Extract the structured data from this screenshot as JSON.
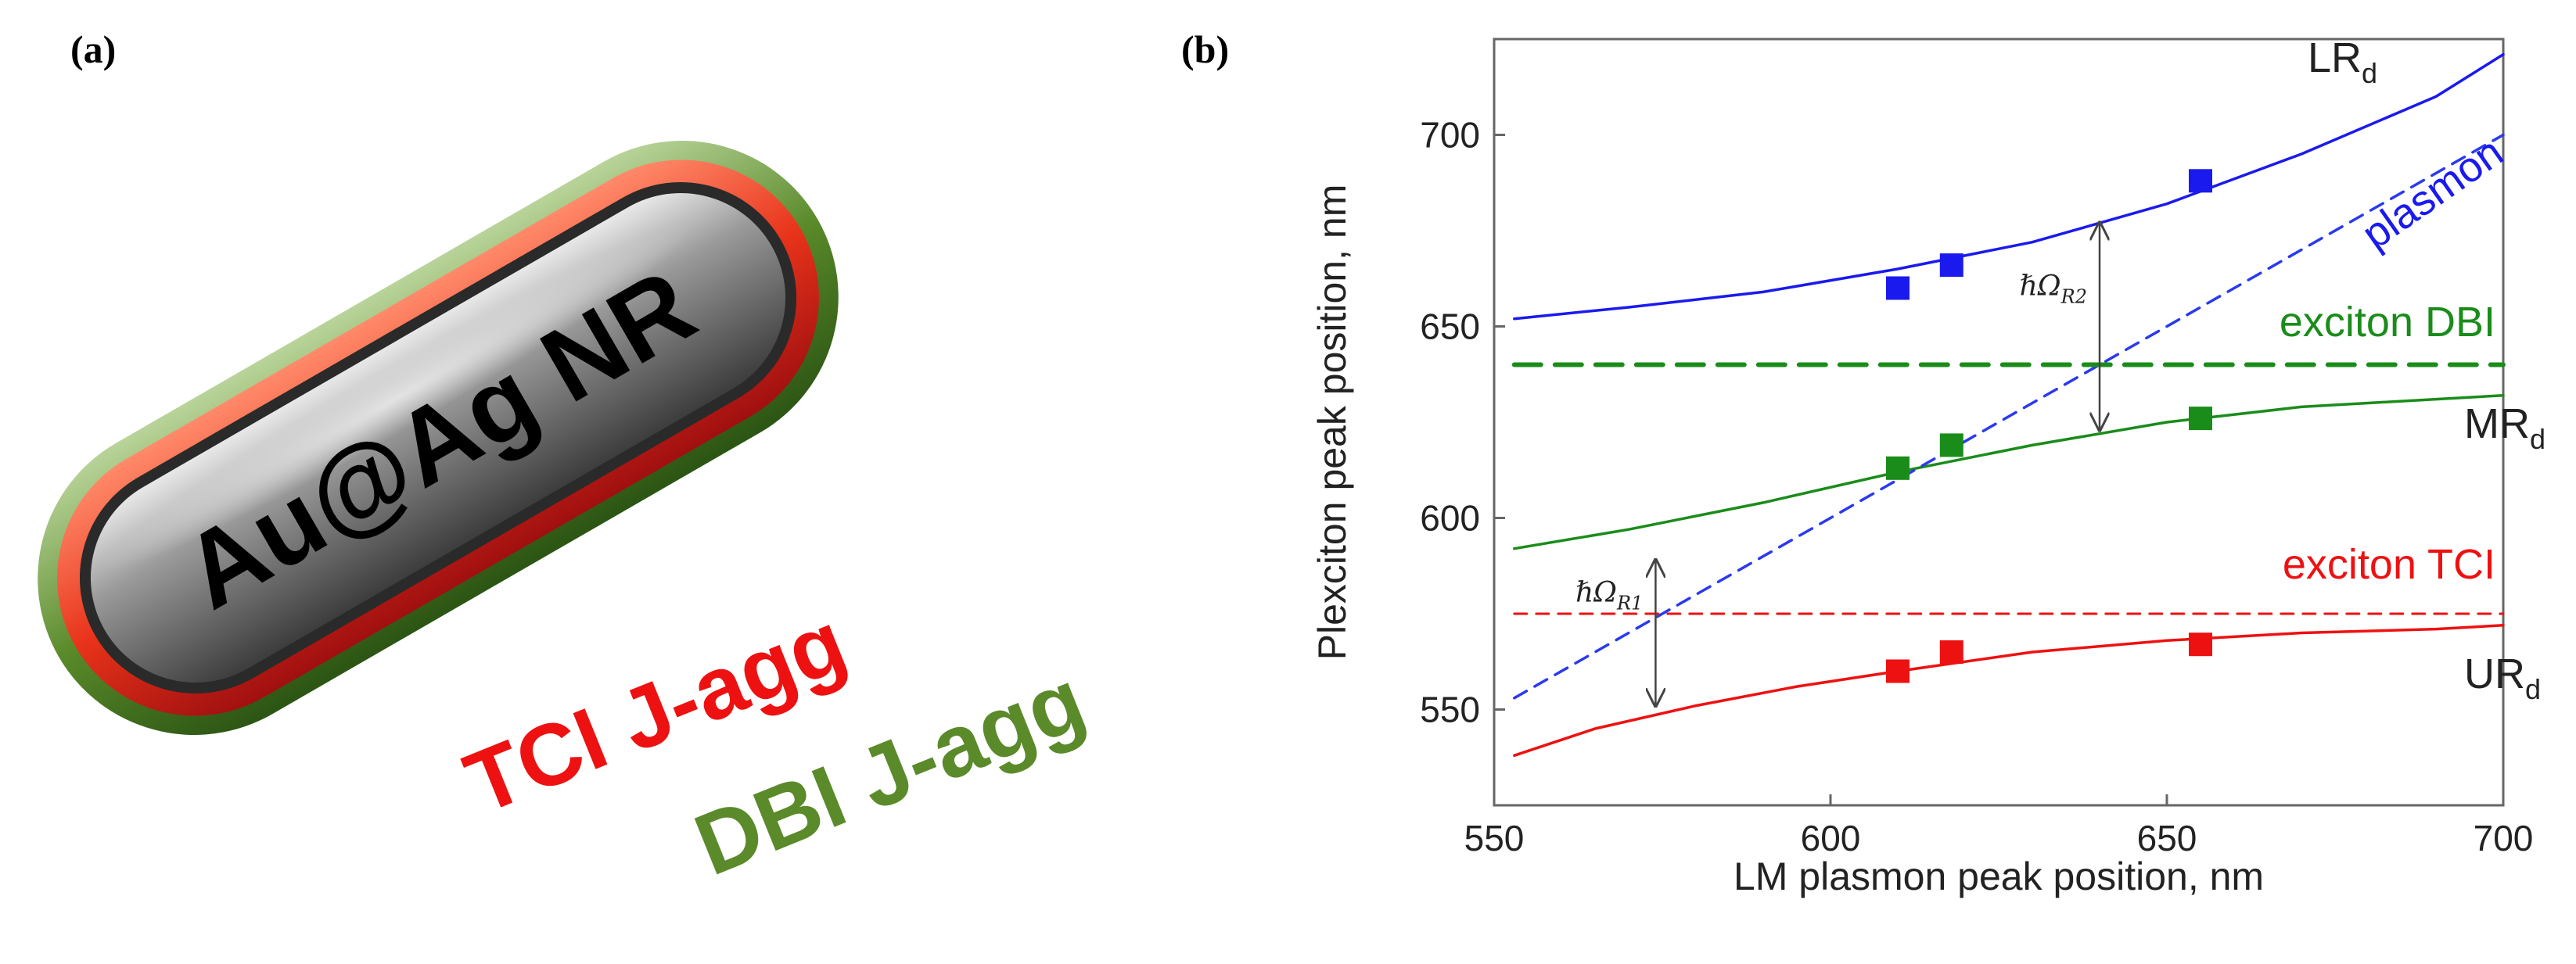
{
  "panel_a": {
    "label": "(a)",
    "rod_label": "Au@Ag NR",
    "shell_1_label": "TCI J-agg",
    "shell_2_label": "DBI J-agg",
    "colors": {
      "shell_1": "#ee1111",
      "shell_2": "#5a8a2a",
      "rod_core": "#8a8a8a"
    }
  },
  "panel_b": {
    "label": "(b)"
  },
  "chart_data": {
    "type": "line",
    "xlabel": "LM plasmon peak position, nm",
    "ylabel": "Plexciton peak position, nm",
    "xlim": [
      550,
      700
    ],
    "ylim": [
      525,
      725
    ],
    "xticks": [
      550,
      600,
      650,
      700
    ],
    "yticks": [
      550,
      600,
      650,
      700
    ],
    "series": [
      {
        "name": "LRd",
        "label_main": "LR",
        "label_sub": "d",
        "color": "#1a1aee",
        "style": "solid",
        "x": [
          553,
          570,
          590,
          610,
          630,
          650,
          670,
          690,
          700
        ],
        "y": [
          652,
          655,
          659,
          665,
          672,
          682,
          695,
          710,
          721
        ]
      },
      {
        "name": "MRd",
        "label_main": "MR",
        "label_sub": "d",
        "color": "#1a8c1a",
        "style": "solid",
        "x": [
          553,
          570,
          590,
          610,
          630,
          650,
          670,
          690,
          700
        ],
        "y": [
          592,
          597,
          604,
          612,
          619,
          625,
          629,
          631,
          632
        ]
      },
      {
        "name": "URd",
        "label_main": "UR",
        "label_sub": "d",
        "color": "#ee1111",
        "style": "solid",
        "x": [
          553,
          565,
          580,
          595,
          610,
          630,
          650,
          670,
          690,
          700
        ],
        "y": [
          538,
          545,
          551,
          556,
          560,
          565,
          568,
          570,
          571,
          572
        ]
      },
      {
        "name": "plasmon",
        "color": "#2a3aee",
        "style": "dashed",
        "x": [
          553,
          700
        ],
        "y": [
          553,
          700
        ]
      },
      {
        "name": "exciton DBI",
        "color": "#1a8c1a",
        "style": "dashed-thick",
        "x": [
          553,
          700
        ],
        "y": [
          640,
          640
        ]
      },
      {
        "name": "exciton TCI",
        "color": "#ee1111",
        "style": "dashed-thin",
        "x": [
          553,
          700
        ],
        "y": [
          575,
          575
        ]
      }
    ],
    "points": [
      {
        "series": "LRd",
        "color": "#1a1aee",
        "x": [
          610,
          618,
          655
        ],
        "y": [
          660,
          666,
          688
        ]
      },
      {
        "series": "MRd",
        "color": "#1a8c1a",
        "x": [
          610,
          618,
          655
        ],
        "y": [
          613,
          619,
          626
        ]
      },
      {
        "series": "URd",
        "color": "#ee1111",
        "x": [
          610,
          618,
          655
        ],
        "y": [
          560,
          565,
          567
        ]
      }
    ],
    "annotations": {
      "plasmon": "plasmon",
      "exciton_dbi": "exciton DBI",
      "exciton_tci": "exciton TCI",
      "rabi_1": {
        "text": "ℏΩ",
        "sub": "R1",
        "x": 574,
        "y_from": 551,
        "y_to": 589
      },
      "rabi_2": {
        "text": "ℏΩ",
        "sub": "R2",
        "x": 640,
        "y_from": 623,
        "y_to": 677
      }
    }
  }
}
